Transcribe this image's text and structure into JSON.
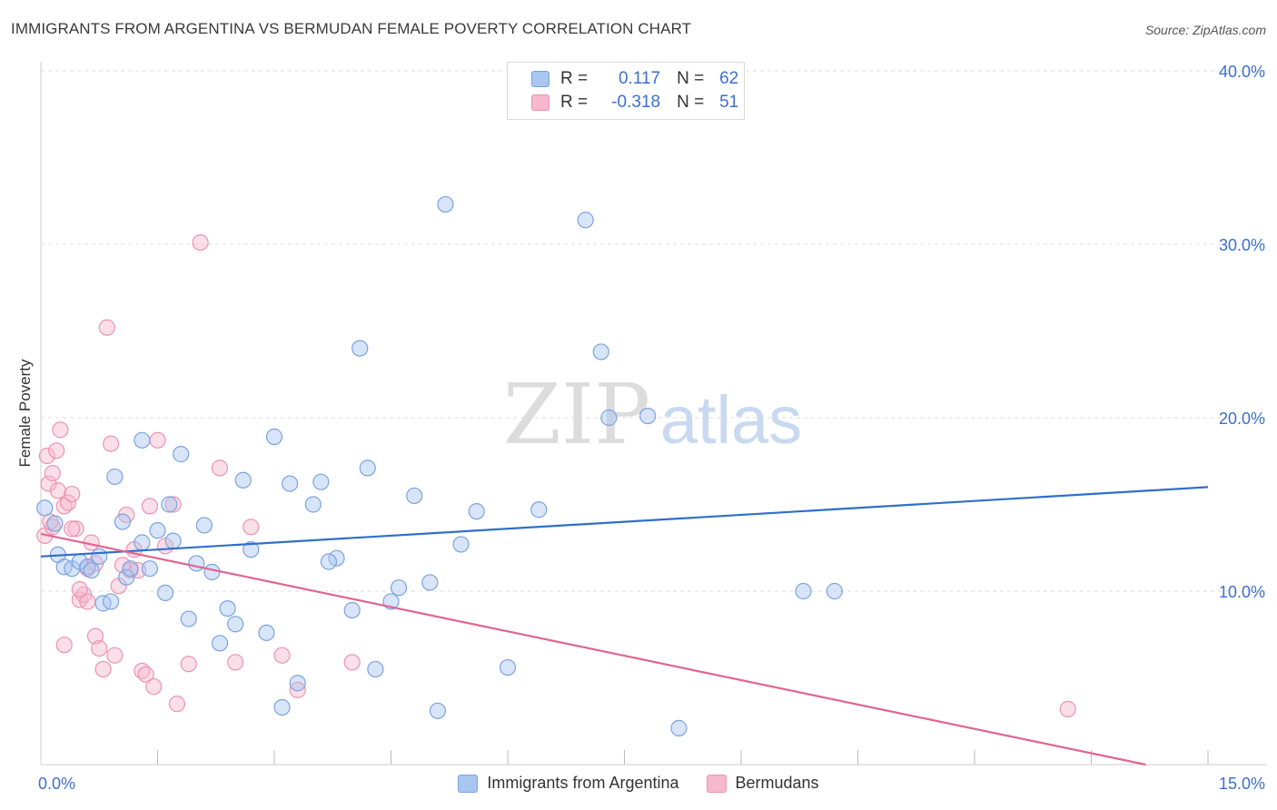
{
  "header": {
    "title": "IMMIGRANTS FROM ARGENTINA VS BERMUDAN FEMALE POVERTY CORRELATION CHART",
    "source": "Source: ZipAtlas.com"
  },
  "watermark": {
    "zip": "ZIP",
    "atlas": "atlas"
  },
  "legend": {
    "rows": [
      {
        "r_label": "R =",
        "r_value": "0.117",
        "n_label": "N =",
        "n_value": "62"
      },
      {
        "r_label": "R =",
        "r_value": "-0.318",
        "n_label": "N =",
        "n_value": "51"
      }
    ]
  },
  "colors": {
    "blue_fill": "#a9c6f0",
    "blue_stroke": "#7aa3e0",
    "blue_line": "#2f6fc9",
    "pink_fill": "#f5b8cc",
    "pink_stroke": "#ee93b0",
    "pink_line": "#e06592",
    "grid": "#dddddd",
    "axis_text": "#3b6fd0"
  },
  "chart_data": {
    "type": "scatter",
    "title": "IMMIGRANTS FROM ARGENTINA VS BERMUDAN FEMALE POVERTY CORRELATION CHART",
    "xlabel": "",
    "ylabel": "Female Poverty",
    "xlim": [
      0,
      15
    ],
    "ylim": [
      0,
      40
    ],
    "x_tick_labels": [
      "0.0%",
      "15.0%"
    ],
    "y_ticks": [
      10,
      20,
      30,
      40
    ],
    "y_tick_labels": [
      "10.0%",
      "20.0%",
      "30.0%",
      "40.0%"
    ],
    "grid": true,
    "legend_position": "bottom",
    "series": [
      {
        "name": "Immigrants from Argentina",
        "color": "#a9c6f0",
        "points": [
          [
            0.05,
            14.8
          ],
          [
            0.18,
            13.9
          ],
          [
            0.22,
            12.1
          ],
          [
            0.3,
            11.4
          ],
          [
            0.4,
            11.3
          ],
          [
            0.5,
            11.7
          ],
          [
            0.6,
            11.4
          ],
          [
            0.75,
            12.0
          ],
          [
            0.8,
            9.3
          ],
          [
            0.95,
            16.6
          ],
          [
            1.05,
            14.0
          ],
          [
            1.1,
            10.8
          ],
          [
            1.15,
            11.3
          ],
          [
            1.3,
            18.7
          ],
          [
            1.4,
            11.3
          ],
          [
            1.6,
            9.9
          ],
          [
            1.65,
            15.0
          ],
          [
            1.8,
            17.9
          ],
          [
            1.9,
            8.4
          ],
          [
            2.0,
            11.6
          ],
          [
            2.1,
            13.8
          ],
          [
            2.2,
            11.1
          ],
          [
            2.4,
            9.0
          ],
          [
            2.5,
            8.1
          ],
          [
            2.7,
            12.4
          ],
          [
            2.9,
            7.6
          ],
          [
            3.0,
            18.9
          ],
          [
            3.1,
            3.3
          ],
          [
            3.2,
            16.2
          ],
          [
            3.3,
            4.7
          ],
          [
            3.5,
            15.0
          ],
          [
            3.6,
            16.3
          ],
          [
            3.8,
            11.9
          ],
          [
            4.0,
            8.9
          ],
          [
            4.1,
            24.0
          ],
          [
            4.2,
            17.1
          ],
          [
            4.3,
            5.5
          ],
          [
            4.5,
            9.4
          ],
          [
            4.6,
            10.2
          ],
          [
            4.8,
            15.5
          ],
          [
            5.0,
            10.5
          ],
          [
            5.2,
            32.3
          ],
          [
            5.4,
            12.7
          ],
          [
            5.6,
            14.6
          ],
          [
            6.0,
            5.6
          ],
          [
            6.4,
            14.7
          ],
          [
            7.0,
            31.4
          ],
          [
            7.2,
            23.8
          ],
          [
            7.3,
            20.0
          ],
          [
            7.8,
            20.1
          ],
          [
            8.2,
            2.1
          ],
          [
            9.8,
            10.0
          ],
          [
            10.2,
            10.0
          ],
          [
            1.5,
            13.5
          ],
          [
            0.9,
            9.4
          ],
          [
            1.3,
            12.8
          ],
          [
            2.3,
            7.0
          ],
          [
            3.7,
            11.7
          ],
          [
            5.1,
            3.1
          ],
          [
            0.65,
            11.2
          ],
          [
            1.7,
            12.9
          ],
          [
            2.6,
            16.4
          ]
        ]
      },
      {
        "name": "Bermudans",
        "color": "#f5b8cc",
        "points": [
          [
            0.05,
            13.2
          ],
          [
            0.08,
            17.8
          ],
          [
            0.1,
            16.2
          ],
          [
            0.15,
            16.8
          ],
          [
            0.2,
            18.1
          ],
          [
            0.25,
            19.3
          ],
          [
            0.3,
            14.9
          ],
          [
            0.35,
            15.1
          ],
          [
            0.4,
            15.6
          ],
          [
            0.45,
            13.6
          ],
          [
            0.5,
            9.5
          ],
          [
            0.55,
            9.8
          ],
          [
            0.6,
            11.3
          ],
          [
            0.65,
            12.8
          ],
          [
            0.7,
            7.4
          ],
          [
            0.75,
            6.7
          ],
          [
            0.8,
            5.5
          ],
          [
            0.9,
            18.5
          ],
          [
            1.0,
            10.3
          ],
          [
            1.1,
            14.4
          ],
          [
            1.15,
            11.2
          ],
          [
            1.2,
            12.4
          ],
          [
            1.3,
            5.4
          ],
          [
            1.35,
            5.2
          ],
          [
            1.4,
            14.9
          ],
          [
            1.5,
            18.7
          ],
          [
            1.6,
            12.6
          ],
          [
            1.7,
            15.0
          ],
          [
            1.75,
            3.5
          ],
          [
            1.9,
            5.8
          ],
          [
            2.05,
            30.1
          ],
          [
            2.3,
            17.1
          ],
          [
            2.5,
            5.9
          ],
          [
            2.7,
            13.7
          ],
          [
            3.1,
            6.3
          ],
          [
            0.85,
            25.2
          ],
          [
            1.05,
            11.5
          ],
          [
            0.95,
            6.3
          ],
          [
            0.3,
            6.9
          ],
          [
            0.6,
            9.4
          ],
          [
            0.22,
            15.8
          ],
          [
            0.4,
            13.6
          ],
          [
            1.45,
            4.5
          ],
          [
            0.5,
            10.1
          ],
          [
            0.15,
            13.7
          ],
          [
            3.3,
            4.3
          ],
          [
            4.0,
            5.9
          ],
          [
            13.2,
            3.2
          ],
          [
            0.7,
            11.6
          ],
          [
            0.12,
            14.0
          ],
          [
            1.25,
            11.2
          ]
        ]
      }
    ],
    "trendlines": [
      {
        "series": "Immigrants from Argentina",
        "x": [
          0,
          15
        ],
        "y": [
          12.0,
          16.0
        ]
      },
      {
        "series": "Bermudans",
        "x": [
          0,
          14.2
        ],
        "y": [
          13.3,
          0
        ]
      }
    ]
  },
  "bottom_legend": {
    "items": [
      {
        "label": "Immigrants from Argentina"
      },
      {
        "label": "Bermudans"
      }
    ]
  }
}
